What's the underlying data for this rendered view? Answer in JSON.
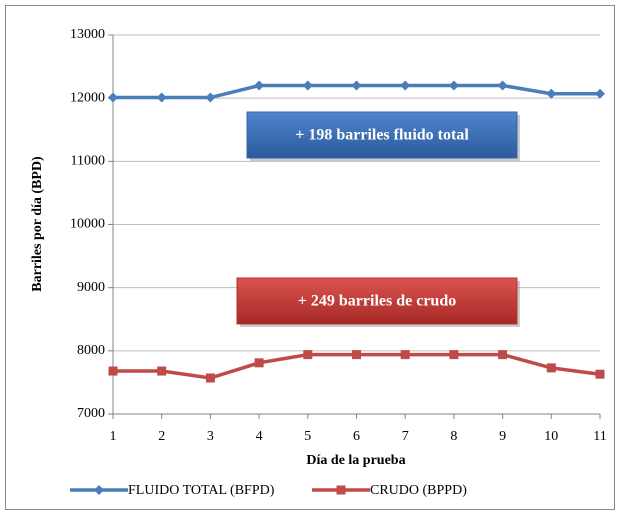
{
  "chart_data": {
    "type": "line",
    "xlabel": "Día de la prueba",
    "ylabel": "Barriles por día (BPD)",
    "x": [
      1,
      2,
      3,
      4,
      5,
      6,
      7,
      8,
      9,
      10,
      11
    ],
    "series": [
      {
        "name": "FLUIDO TOTAL (BFPD)",
        "color": "#4a7ebb",
        "marker": "diamond",
        "values": [
          12010,
          12010,
          12010,
          12200,
          12200,
          12200,
          12200,
          12200,
          12200,
          12070,
          12070
        ]
      },
      {
        "name": "CRUDO (BPPD)",
        "color": "#be4b48",
        "marker": "square",
        "values": [
          7680,
          7680,
          7570,
          7810,
          7940,
          7940,
          7940,
          7940,
          7940,
          7730,
          7630
        ]
      }
    ],
    "annotations": [
      {
        "text": "+ 198 barriles fluido total",
        "color": "#3565a8"
      },
      {
        "text": "+ 249 barriles de crudo",
        "color": "#b8312e"
      }
    ],
    "xlim": [
      1,
      11
    ],
    "xticks": [
      1,
      2,
      3,
      4,
      5,
      6,
      7,
      8,
      9,
      10,
      11
    ],
    "ylim": [
      7000,
      13000
    ],
    "yticks": [
      7000,
      8000,
      9000,
      10000,
      11000,
      12000,
      13000
    ],
    "grid": true,
    "legend": "bottom"
  }
}
